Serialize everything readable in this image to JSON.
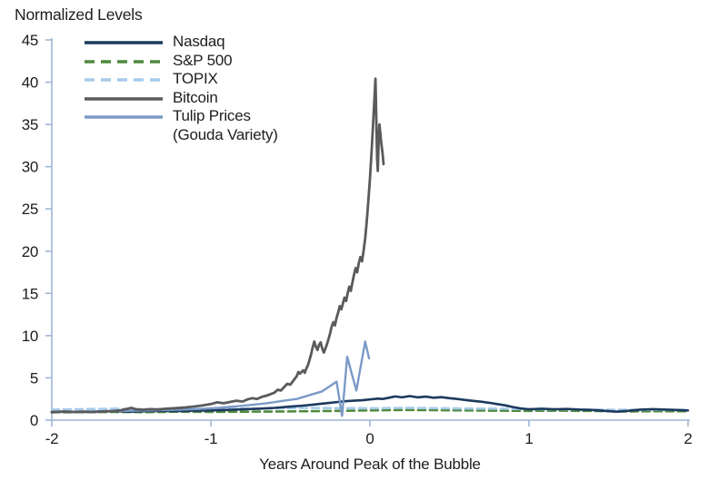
{
  "chart_data": {
    "type": "line",
    "title": "Normalized Levels",
    "xlabel": "Years Around Peak of the Bubble",
    "ylabel": "Normalized Levels",
    "xlim": [
      -2,
      2
    ],
    "ylim": [
      0,
      45
    ],
    "x_ticks": [
      -2,
      -1,
      0,
      1,
      2
    ],
    "y_ticks": [
      0,
      5,
      10,
      15,
      20,
      25,
      30,
      35,
      40,
      45
    ],
    "grid": false,
    "legend_position": "top-left",
    "axis_color": "#9FB6D4",
    "text_color": "#1D1D1D",
    "series": [
      {
        "id": "nasdaq",
        "label_lines": [
          "Nasdaq"
        ],
        "color": "#1C3A5E",
        "dash": null,
        "width": 2.6,
        "z": 3,
        "points": [
          [
            -2,
            0.98
          ],
          [
            -1.9,
            1.0
          ],
          [
            -1.8,
            0.97
          ],
          [
            -1.7,
            1.03
          ],
          [
            -1.6,
            1.06
          ],
          [
            -1.5,
            1.0
          ],
          [
            -1.4,
            1.06
          ],
          [
            -1.3,
            1.1
          ],
          [
            -1.2,
            1.07
          ],
          [
            -1.1,
            1.12
          ],
          [
            -1.0,
            1.15
          ],
          [
            -0.9,
            1.2
          ],
          [
            -0.8,
            1.28
          ],
          [
            -0.7,
            1.35
          ],
          [
            -0.6,
            1.45
          ],
          [
            -0.5,
            1.6
          ],
          [
            -0.42,
            1.72
          ],
          [
            -0.35,
            1.85
          ],
          [
            -0.3,
            1.95
          ],
          [
            -0.25,
            2.05
          ],
          [
            -0.2,
            2.15
          ],
          [
            -0.15,
            2.25
          ],
          [
            -0.1,
            2.3
          ],
          [
            -0.05,
            2.35
          ],
          [
            0,
            2.45
          ],
          [
            0.05,
            2.55
          ],
          [
            0.08,
            2.5
          ],
          [
            0.12,
            2.65
          ],
          [
            0.16,
            2.8
          ],
          [
            0.2,
            2.7
          ],
          [
            0.25,
            2.85
          ],
          [
            0.3,
            2.7
          ],
          [
            0.35,
            2.78
          ],
          [
            0.4,
            2.65
          ],
          [
            0.45,
            2.72
          ],
          [
            0.5,
            2.6
          ],
          [
            0.55,
            2.5
          ],
          [
            0.6,
            2.38
          ],
          [
            0.65,
            2.28
          ],
          [
            0.7,
            2.18
          ],
          [
            0.75,
            2.05
          ],
          [
            0.8,
            1.9
          ],
          [
            0.85,
            1.75
          ],
          [
            0.9,
            1.55
          ],
          [
            0.95,
            1.38
          ],
          [
            1.0,
            1.28
          ],
          [
            1.08,
            1.35
          ],
          [
            1.16,
            1.28
          ],
          [
            1.24,
            1.32
          ],
          [
            1.32,
            1.25
          ],
          [
            1.4,
            1.2
          ],
          [
            1.48,
            1.1
          ],
          [
            1.55,
            1.0
          ],
          [
            1.62,
            1.1
          ],
          [
            1.7,
            1.25
          ],
          [
            1.78,
            1.3
          ],
          [
            1.86,
            1.25
          ],
          [
            1.93,
            1.2
          ],
          [
            2,
            1.15
          ]
        ]
      },
      {
        "id": "sp500",
        "label_lines": [
          "S&P 500"
        ],
        "color": "#4F8A3E",
        "dash": "8 5",
        "width": 2.6,
        "z": 1,
        "points": [
          [
            -2,
            0.92
          ],
          [
            -1.8,
            0.95
          ],
          [
            -1.6,
            0.97
          ],
          [
            -1.4,
            0.95
          ],
          [
            -1.2,
            1.0
          ],
          [
            -1.0,
            0.98
          ],
          [
            -0.8,
            1.0
          ],
          [
            -0.6,
            1.02
          ],
          [
            -0.4,
            1.05
          ],
          [
            -0.2,
            1.1
          ],
          [
            0,
            1.15
          ],
          [
            0.2,
            1.2
          ],
          [
            0.4,
            1.18
          ],
          [
            0.6,
            1.15
          ],
          [
            0.8,
            1.12
          ],
          [
            1.0,
            1.1
          ],
          [
            1.2,
            1.12
          ],
          [
            1.4,
            1.08
          ],
          [
            1.6,
            1.02
          ],
          [
            1.8,
            1.05
          ],
          [
            2,
            1.05
          ]
        ]
      },
      {
        "id": "topix",
        "label_lines": [
          "TOPIX"
        ],
        "color": "#A7CBEB",
        "dash": "8 5",
        "width": 2.6,
        "z": 2,
        "points": [
          [
            -2,
            1.25
          ],
          [
            -1.8,
            1.3
          ],
          [
            -1.6,
            1.35
          ],
          [
            -1.4,
            1.3
          ],
          [
            -1.2,
            1.35
          ],
          [
            -1.0,
            1.3
          ],
          [
            -0.8,
            1.35
          ],
          [
            -0.6,
            1.4
          ],
          [
            -0.4,
            1.45
          ],
          [
            -0.2,
            1.42
          ],
          [
            0,
            1.4
          ],
          [
            0.2,
            1.45
          ],
          [
            0.4,
            1.42
          ],
          [
            0.6,
            1.38
          ],
          [
            0.8,
            1.35
          ],
          [
            1.0,
            1.3
          ],
          [
            1.2,
            1.28
          ],
          [
            1.4,
            1.25
          ],
          [
            1.6,
            1.22
          ],
          [
            1.8,
            1.22
          ],
          [
            2,
            1.2
          ]
        ]
      },
      {
        "id": "bitcoin",
        "label_lines": [
          "Bitcoin"
        ],
        "color": "#595A5C",
        "dash": null,
        "width": 2.8,
        "z": 5,
        "points": [
          [
            -2,
            0.95
          ],
          [
            -1.93,
            1.02
          ],
          [
            -1.86,
            0.97
          ],
          [
            -1.8,
            1.0
          ],
          [
            -1.74,
            0.96
          ],
          [
            -1.68,
            1.03
          ],
          [
            -1.62,
            1.05
          ],
          [
            -1.56,
            1.18
          ],
          [
            -1.5,
            1.45
          ],
          [
            -1.47,
            1.28
          ],
          [
            -1.43,
            1.22
          ],
          [
            -1.38,
            1.3
          ],
          [
            -1.33,
            1.26
          ],
          [
            -1.28,
            1.35
          ],
          [
            -1.22,
            1.42
          ],
          [
            -1.16,
            1.5
          ],
          [
            -1.1,
            1.62
          ],
          [
            -1.05,
            1.75
          ],
          [
            -1.0,
            1.9
          ],
          [
            -0.96,
            2.1
          ],
          [
            -0.92,
            2.0
          ],
          [
            -0.88,
            2.15
          ],
          [
            -0.84,
            2.3
          ],
          [
            -0.8,
            2.2
          ],
          [
            -0.77,
            2.45
          ],
          [
            -0.74,
            2.6
          ],
          [
            -0.71,
            2.5
          ],
          [
            -0.68,
            2.75
          ],
          [
            -0.65,
            2.9
          ],
          [
            -0.62,
            3.1
          ],
          [
            -0.6,
            3.25
          ],
          [
            -0.58,
            3.6
          ],
          [
            -0.56,
            3.5
          ],
          [
            -0.54,
            3.9
          ],
          [
            -0.52,
            4.3
          ],
          [
            -0.5,
            4.2
          ],
          [
            -0.48,
            4.7
          ],
          [
            -0.46,
            5.2
          ],
          [
            -0.45,
            5.7
          ],
          [
            -0.44,
            5.5
          ],
          [
            -0.42,
            5.9
          ],
          [
            -0.41,
            5.6
          ],
          [
            -0.4,
            6.1
          ],
          [
            -0.39,
            6.5
          ],
          [
            -0.38,
            7.1
          ],
          [
            -0.37,
            7.8
          ],
          [
            -0.36,
            8.6
          ],
          [
            -0.35,
            9.3
          ],
          [
            -0.34,
            8.7
          ],
          [
            -0.33,
            8.3
          ],
          [
            -0.32,
            8.9
          ],
          [
            -0.31,
            9.2
          ],
          [
            -0.3,
            8.5
          ],
          [
            -0.29,
            8.0
          ],
          [
            -0.28,
            8.45
          ],
          [
            -0.27,
            9.0
          ],
          [
            -0.26,
            9.6
          ],
          [
            -0.25,
            10.3
          ],
          [
            -0.24,
            11.1
          ],
          [
            -0.23,
            11.6
          ],
          [
            -0.22,
            11.2
          ],
          [
            -0.21,
            12.1
          ],
          [
            -0.2,
            12.7
          ],
          [
            -0.19,
            13.5
          ],
          [
            -0.18,
            13.1
          ],
          [
            -0.17,
            13.8
          ],
          [
            -0.16,
            14.5
          ],
          [
            -0.15,
            14.1
          ],
          [
            -0.14,
            15.0
          ],
          [
            -0.13,
            15.8
          ],
          [
            -0.12,
            15.3
          ],
          [
            -0.11,
            16.3
          ],
          [
            -0.1,
            17.2
          ],
          [
            -0.09,
            18.0
          ],
          [
            -0.08,
            17.5
          ],
          [
            -0.07,
            18.6
          ],
          [
            -0.06,
            19.3
          ],
          [
            -0.05,
            18.8
          ],
          [
            -0.04,
            20.0
          ],
          [
            -0.03,
            21.5
          ],
          [
            -0.02,
            23.5
          ],
          [
            -0.01,
            26.0
          ],
          [
            0,
            28.5
          ],
          [
            0.01,
            31.5
          ],
          [
            0.02,
            35.0
          ],
          [
            0.03,
            38.5
          ],
          [
            0.035,
            40.4
          ],
          [
            0.04,
            36.0
          ],
          [
            0.045,
            31.0
          ],
          [
            0.05,
            29.5
          ],
          [
            0.055,
            33.0
          ],
          [
            0.06,
            35.0
          ],
          [
            0.07,
            33.0
          ],
          [
            0.08,
            31.5
          ],
          [
            0.086,
            30.3
          ]
        ]
      },
      {
        "id": "tulip",
        "label_lines": [
          "Tulip Prices",
          "(Gouda Variety)"
        ],
        "color": "#7B9AC7",
        "dash": null,
        "width": 2.4,
        "z": 4,
        "points": [
          [
            -2,
            0.95
          ],
          [
            -1.85,
            1.0
          ],
          [
            -1.7,
            1.05
          ],
          [
            -1.55,
            1.1
          ],
          [
            -1.4,
            1.15
          ],
          [
            -1.25,
            1.2
          ],
          [
            -1.1,
            1.3
          ],
          [
            -0.95,
            1.45
          ],
          [
            -0.8,
            1.7
          ],
          [
            -0.65,
            2.0
          ],
          [
            -0.52,
            2.35
          ],
          [
            -0.46,
            2.5
          ],
          [
            -0.3,
            3.4
          ],
          [
            -0.21,
            4.55
          ],
          [
            -0.175,
            0.5
          ],
          [
            -0.143,
            7.5
          ],
          [
            -0.085,
            3.5
          ],
          [
            -0.03,
            9.3
          ],
          [
            -0.005,
            7.3
          ]
        ]
      }
    ]
  }
}
